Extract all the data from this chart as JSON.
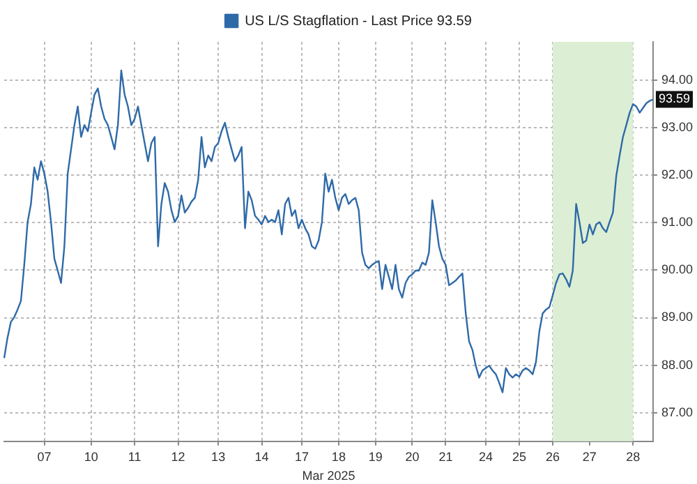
{
  "chart_data": {
    "type": "line",
    "xlabel": "Mar 2025",
    "legend": "top",
    "grid": true,
    "marker": "none",
    "line_style": "solid",
    "categories": [
      null,
      null,
      null,
      null,
      null,
      null,
      null,
      null,
      null,
      null,
      null,
      null,
      "07",
      null,
      null,
      null,
      null,
      null,
      null,
      null,
      null,
      null,
      null,
      null,
      null,
      null,
      "10",
      null,
      null,
      null,
      null,
      null,
      null,
      null,
      null,
      null,
      null,
      null,
      null,
      "11",
      null,
      null,
      null,
      null,
      null,
      null,
      null,
      null,
      null,
      null,
      null,
      null,
      "12",
      null,
      null,
      null,
      null,
      null,
      null,
      null,
      null,
      null,
      null,
      null,
      "13",
      null,
      null,
      null,
      null,
      null,
      null,
      null,
      null,
      null,
      null,
      null,
      null,
      "14",
      null,
      null,
      null,
      null,
      null,
      null,
      null,
      null,
      null,
      null,
      null,
      "17",
      null,
      null,
      null,
      null,
      null,
      null,
      null,
      null,
      null,
      null,
      "18",
      null,
      null,
      null,
      null,
      null,
      null,
      null,
      null,
      null,
      null,
      "19",
      null,
      null,
      null,
      null,
      null,
      null,
      null,
      null,
      null,
      null,
      "20",
      null,
      null,
      null,
      null,
      null,
      null,
      null,
      null,
      null,
      "21",
      null,
      null,
      null,
      null,
      null,
      null,
      null,
      null,
      null,
      null,
      null,
      "24",
      null,
      null,
      null,
      null,
      null,
      null,
      null,
      null,
      null,
      "25",
      null,
      null,
      null,
      null,
      null,
      null,
      null,
      null,
      null,
      "26",
      null,
      null,
      null,
      null,
      null,
      null,
      null,
      null,
      null,
      null,
      "27",
      null,
      null,
      null,
      null,
      null,
      null,
      null,
      null,
      null,
      null,
      null,
      null,
      "28",
      null,
      null,
      null,
      null,
      null,
      null
    ],
    "ylim": [
      86.4,
      94.8
    ],
    "yticks": [
      {
        "value": 87,
        "label": "87.00"
      },
      {
        "value": 88,
        "label": "88.00"
      },
      {
        "value": 89,
        "label": "89.00"
      },
      {
        "value": 90,
        "label": "90.00"
      },
      {
        "value": 91,
        "label": "91.00"
      },
      {
        "value": 92,
        "label": "92.00"
      },
      {
        "value": 93,
        "label": "93.00"
      },
      {
        "value": 94,
        "label": "94.00"
      }
    ],
    "bands": [
      {
        "axis": "x",
        "from": "26",
        "to": "28",
        "color": "#dcefd4"
      }
    ],
    "annotations": [
      {
        "text": "93.59",
        "y": 93.59
      }
    ],
    "series": [
      {
        "name": "US L/S Stagflation - Last Price 93.59",
        "color": "#2f6aa8",
        "values": [
          88.15,
          88.58,
          88.91,
          89.01,
          89.17,
          89.35,
          90.11,
          91.01,
          91.39,
          92.16,
          91.9,
          92.29,
          92.03,
          91.65,
          91.01,
          90.24,
          89.99,
          89.73,
          90.5,
          92.03,
          92.54,
          93.05,
          93.44,
          92.8,
          93.05,
          92.92,
          93.31,
          93.69,
          93.82,
          93.44,
          93.18,
          93.05,
          92.8,
          92.54,
          93.05,
          94.2,
          93.69,
          93.44,
          93.05,
          93.18,
          93.44,
          93.05,
          92.67,
          92.29,
          92.67,
          92.8,
          90.5,
          91.39,
          91.83,
          91.65,
          91.26,
          91.01,
          91.14,
          91.57,
          91.21,
          91.31,
          91.44,
          91.52,
          91.9,
          92.8,
          92.16,
          92.41,
          92.29,
          92.59,
          92.67,
          92.92,
          93.1,
          92.8,
          92.54,
          92.29,
          92.41,
          92.59,
          90.88,
          91.65,
          91.47,
          91.14,
          91.06,
          90.96,
          91.14,
          91.01,
          91.06,
          91.01,
          91.26,
          90.75,
          91.39,
          91.52,
          91.14,
          91.26,
          90.88,
          91.06,
          90.88,
          90.75,
          90.5,
          90.45,
          90.62,
          91.01,
          92.03,
          91.65,
          91.9,
          91.52,
          91.26,
          91.52,
          91.6,
          91.39,
          91.47,
          91.52,
          91.26,
          90.37,
          90.11,
          90.04,
          90.11,
          90.16,
          90.19,
          89.6,
          90.11,
          89.86,
          89.6,
          90.11,
          89.6,
          89.42,
          89.73,
          89.86,
          89.91,
          89.99,
          89.99,
          90.16,
          90.11,
          90.37,
          91.47,
          91.01,
          90.5,
          90.24,
          90.11,
          89.68,
          89.73,
          89.78,
          89.86,
          89.93,
          89.09,
          88.5,
          88.32,
          87.99,
          87.74,
          87.89,
          87.94,
          87.99,
          87.89,
          87.81,
          87.63,
          87.43,
          87.94,
          87.81,
          87.74,
          87.81,
          87.76,
          87.89,
          87.94,
          87.89,
          87.81,
          88.07,
          88.71,
          89.09,
          89.17,
          89.22,
          89.47,
          89.73,
          89.91,
          89.93,
          89.81,
          89.65,
          89.99,
          91.39,
          91.01,
          90.57,
          90.62,
          90.96,
          90.75,
          90.96,
          91.01,
          90.88,
          90.8,
          91.01,
          91.21,
          91.98,
          92.41,
          92.8,
          93.05,
          93.31,
          93.49,
          93.44,
          93.31,
          93.41,
          93.51,
          93.56,
          93.59
        ]
      }
    ]
  }
}
